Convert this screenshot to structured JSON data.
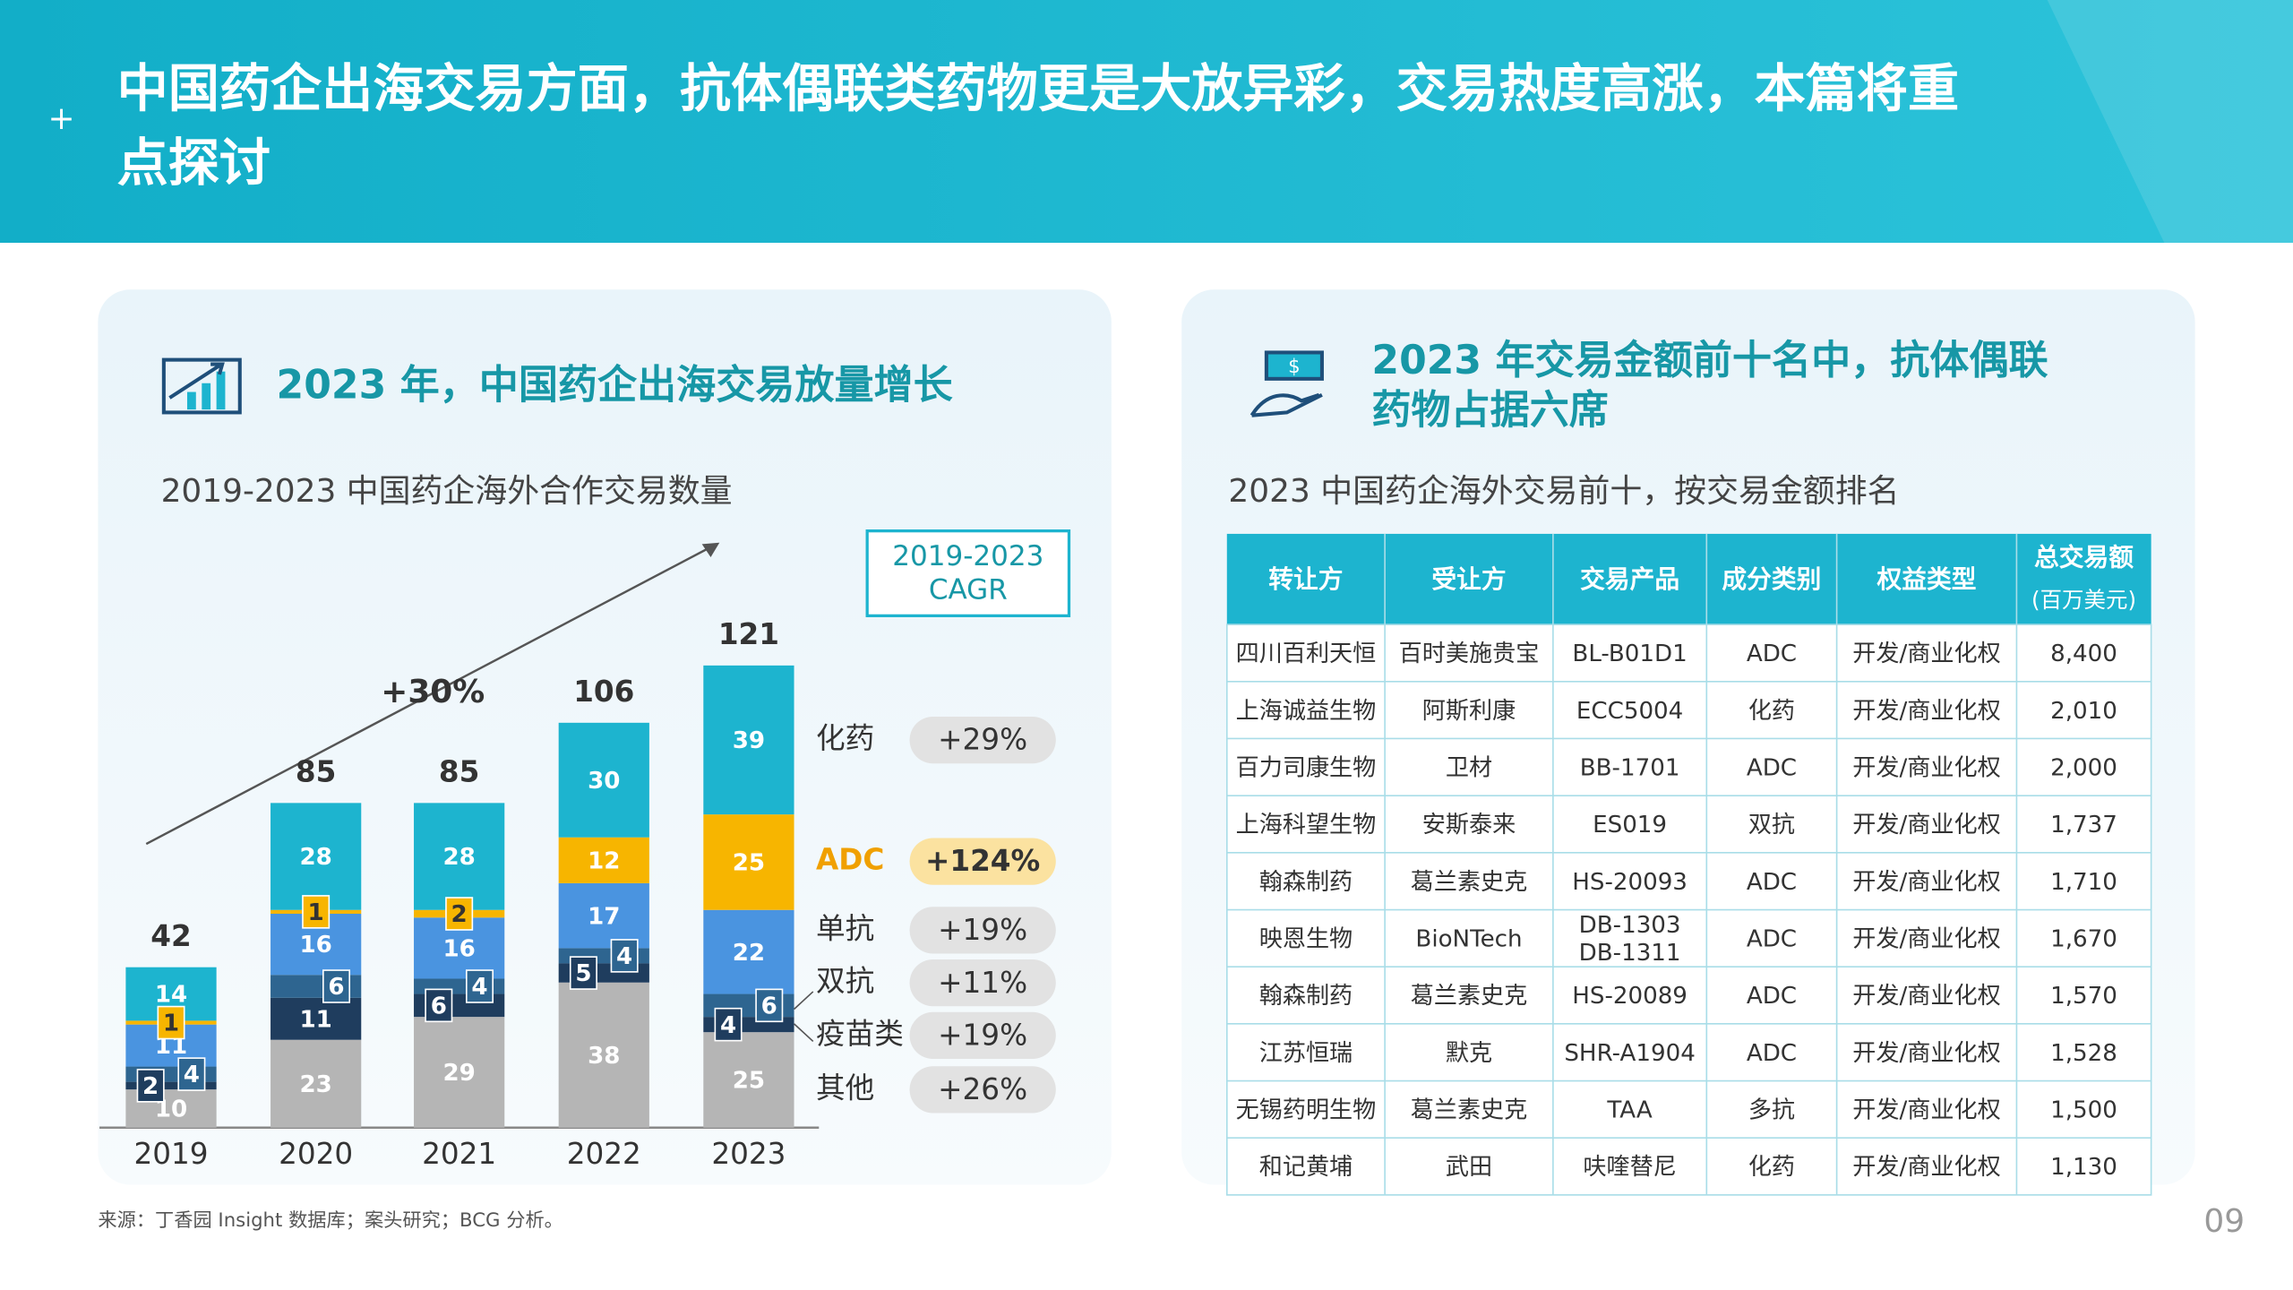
{
  "header": {
    "title": [
      "中国药企出海交易方面，抗体偶联类药物更是大放异彩，交易热度高涨，本篇将重",
      "点探讨"
    ]
  },
  "left": {
    "heading": "2023 年，中国药企出海交易放量增长",
    "subtitle": "2019-2023 中国药企海外合作交易数量",
    "cagr_box": [
      "2019-2023",
      "CAGR"
    ],
    "growth": "+30%"
  },
  "chart_data": {
    "type": "bar",
    "stacked": true,
    "categories": [
      "2019",
      "2020",
      "2021",
      "2022",
      "2023"
    ],
    "totals": [
      42,
      85,
      85,
      106,
      121
    ],
    "series": [
      {
        "name": "其他",
        "color": "#b5b5b5",
        "values": [
          10,
          23,
          29,
          38,
          25
        ],
        "cagr": "+26%"
      },
      {
        "name": "疫苗类",
        "color": "#1f3d5e",
        "values": [
          2,
          11,
          6,
          5,
          4
        ],
        "cagr": "+19%"
      },
      {
        "name": "双抗",
        "color": "#2e6590",
        "values": [
          4,
          6,
          4,
          4,
          6
        ],
        "cagr": "+11%"
      },
      {
        "name": "单抗",
        "color": "#4a94e0",
        "values": [
          11,
          16,
          16,
          17,
          22
        ],
        "cagr": "+19%"
      },
      {
        "name": "ADC",
        "color": "#f7b500",
        "values": [
          1,
          1,
          2,
          12,
          25
        ],
        "cagr": "+124%"
      },
      {
        "name": "化药",
        "color": "#1db4cf",
        "values": [
          14,
          28,
          28,
          30,
          39
        ],
        "cagr": "+29%"
      }
    ]
  },
  "right": {
    "heading": [
      "2023 年交易金额前十名中，抗体偶联",
      "药物占据六席"
    ],
    "subtitle": "2023 中国药企海外交易前十，按交易金额排名",
    "table": {
      "header": [
        [
          "转让方"
        ],
        [
          "受让方"
        ],
        [
          "交易产品"
        ],
        [
          "成分类别"
        ],
        [
          "权益类型"
        ],
        [
          "总交易额",
          "(百万美元)"
        ]
      ],
      "rows": [
        [
          [
            "四川百利天恒"
          ],
          [
            "百时美施贵宝"
          ],
          [
            "BL-B01D1"
          ],
          [
            "ADC"
          ],
          [
            "开发/商业化权"
          ],
          [
            "8,400"
          ]
        ],
        [
          [
            "上海诚益生物"
          ],
          [
            "阿斯利康"
          ],
          [
            "ECC5004"
          ],
          [
            "化药"
          ],
          [
            "开发/商业化权"
          ],
          [
            "2,010"
          ]
        ],
        [
          [
            "百力司康生物"
          ],
          [
            "卫材"
          ],
          [
            "BB-1701"
          ],
          [
            "ADC"
          ],
          [
            "开发/商业化权"
          ],
          [
            "2,000"
          ]
        ],
        [
          [
            "上海科望生物"
          ],
          [
            "安斯泰来"
          ],
          [
            "ES019"
          ],
          [
            "双抗"
          ],
          [
            "开发/商业化权"
          ],
          [
            "1,737"
          ]
        ],
        [
          [
            "翰森制药"
          ],
          [
            "葛兰素史克"
          ],
          [
            "HS-20093"
          ],
          [
            "ADC"
          ],
          [
            "开发/商业化权"
          ],
          [
            "1,710"
          ]
        ],
        [
          [
            "映恩生物"
          ],
          [
            "BioNTech"
          ],
          [
            "DB-1303",
            "DB-1311"
          ],
          [
            "ADC"
          ],
          [
            "开发/商业化权"
          ],
          [
            "1,670"
          ]
        ],
        [
          [
            "翰森制药"
          ],
          [
            "葛兰素史克"
          ],
          [
            "HS-20089"
          ],
          [
            "ADC"
          ],
          [
            "开发/商业化权"
          ],
          [
            "1,570"
          ]
        ],
        [
          [
            "江苏恒瑞"
          ],
          [
            "默克"
          ],
          [
            "SHR-A1904"
          ],
          [
            "ADC"
          ],
          [
            "开发/商业化权"
          ],
          [
            "1,528"
          ]
        ],
        [
          [
            "无锡药明生物"
          ],
          [
            "葛兰素史克"
          ],
          [
            "TAA"
          ],
          [
            "多抗"
          ],
          [
            "开发/商业化权"
          ],
          [
            "1,500"
          ]
        ],
        [
          [
            "和记黄埔"
          ],
          [
            "武田"
          ],
          [
            "呋喹替尼"
          ],
          [
            "化药"
          ],
          [
            "开发/商业化权"
          ],
          [
            "1,130"
          ]
        ]
      ]
    }
  },
  "footer": {
    "source": "来源：丁香园 Insight 数据库；案头研究；BCG 分析。",
    "page": "09"
  }
}
